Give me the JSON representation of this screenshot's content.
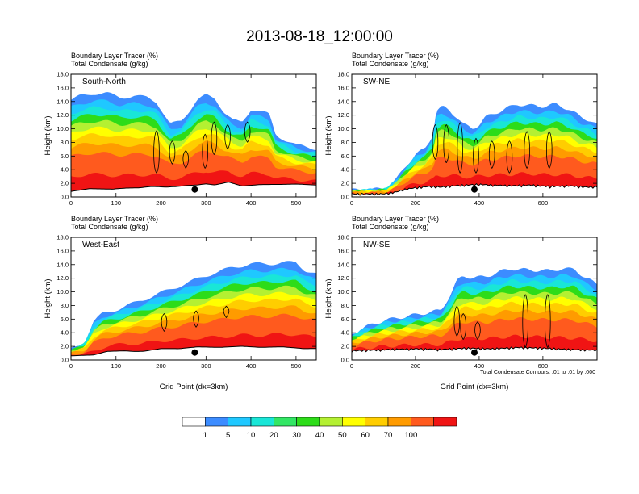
{
  "title": "2013-08-18_12:00:00",
  "chart_data": [
    {
      "type": "filled-contour",
      "panel": "South-North",
      "line1": "Boundary Layer Tracer   (%)",
      "line2": "Total Condensate   (g/kg)",
      "xlabel": "",
      "ylabel": "Height (km)",
      "xlim": [
        0,
        545
      ],
      "ylim": [
        0,
        18
      ],
      "xticks": [
        "0",
        "100",
        "200",
        "300",
        "400",
        "500"
      ],
      "yticks": [
        "0.0",
        "2.0",
        "4.0",
        "6.0",
        "8.0",
        "10.0",
        "12.0",
        "14.0",
        "16.0",
        "18.0"
      ],
      "marker": {
        "x": 275,
        "y": 1.1
      },
      "terrain": [
        [
          0,
          0.8
        ],
        [
          40,
          1.1
        ],
        [
          90,
          0.9
        ],
        [
          120,
          1.0
        ],
        [
          150,
          1.0
        ],
        [
          180,
          1.2
        ],
        [
          210,
          1.1
        ],
        [
          235,
          1.2
        ],
        [
          260,
          1.4
        ],
        [
          280,
          1.5
        ],
        [
          300,
          1.7
        ],
        [
          320,
          1.6
        ],
        [
          350,
          2.1
        ],
        [
          380,
          1.6
        ],
        [
          420,
          1.7
        ],
        [
          470,
          1.6
        ],
        [
          500,
          1.6
        ],
        [
          545,
          1.4
        ]
      ],
      "cloud_top": [
        [
          0,
          14.2
        ],
        [
          20,
          14.8
        ],
        [
          50,
          15.2
        ],
        [
          80,
          15.2
        ],
        [
          110,
          14.6
        ],
        [
          140,
          14.8
        ],
        [
          170,
          14.6
        ],
        [
          190,
          14.0
        ],
        [
          205,
          12.3
        ],
        [
          220,
          10.6
        ],
        [
          245,
          11.2
        ],
        [
          262,
          12.6
        ],
        [
          280,
          14.2
        ],
        [
          300,
          14.9
        ],
        [
          320,
          14.5
        ],
        [
          340,
          12.5
        ],
        [
          360,
          11.2
        ],
        [
          380,
          10.9
        ],
        [
          400,
          12.9
        ],
        [
          420,
          12.6
        ],
        [
          440,
          12.1
        ],
        [
          455,
          9.1
        ],
        [
          470,
          8.6
        ],
        [
          500,
          7.6
        ],
        [
          545,
          7.1
        ]
      ],
      "contours": [
        {
          "x": 190,
          "yb": 3.5,
          "yt": 9.7
        },
        {
          "x": 225,
          "yb": 4.8,
          "yt": 8.2
        },
        {
          "x": 255,
          "yb": 4.2,
          "yt": 6.8
        },
        {
          "x": 298,
          "yb": 4.2,
          "yt": 9.2
        },
        {
          "x": 318,
          "yb": 6.2,
          "yt": 11.0
        },
        {
          "x": 348,
          "yb": 7.0,
          "yt": 10.6
        },
        {
          "x": 392,
          "yb": 8.0,
          "yt": 11.0
        }
      ]
    },
    {
      "type": "filled-contour",
      "panel": "SW-NE",
      "line1": "Boundary Layer Tracer   (%)",
      "line2": "Total Condensate   (g/kg)",
      "xlabel": "",
      "ylabel": "Height (km)",
      "xlim": [
        0,
        770
      ],
      "ylim": [
        0,
        18
      ],
      "xticks": [
        "0",
        "200",
        "400",
        "600"
      ],
      "yticks": [
        "0.0",
        "2.0",
        "4.0",
        "6.0",
        "8.0",
        "10.0",
        "12.0",
        "14.0",
        "16.0",
        "18.0"
      ],
      "marker": {
        "x": 385,
        "y": 1.1
      },
      "terrain": [
        [
          0,
          0.2
        ],
        [
          100,
          0.2
        ],
        [
          140,
          0.5
        ],
        [
          170,
          0.9
        ],
        [
          200,
          1.1
        ],
        [
          240,
          1.3
        ],
        [
          280,
          1.2
        ],
        [
          320,
          1.4
        ],
        [
          360,
          1.5
        ],
        [
          400,
          1.6
        ],
        [
          440,
          1.5
        ],
        [
          500,
          1.4
        ],
        [
          560,
          1.5
        ],
        [
          620,
          1.3
        ],
        [
          680,
          1.4
        ],
        [
          740,
          1.2
        ],
        [
          770,
          1.3
        ]
      ],
      "cloud_top": [
        [
          0,
          1.0
        ],
        [
          70,
          1.1
        ],
        [
          110,
          1.3
        ],
        [
          140,
          2.6
        ],
        [
          170,
          4.6
        ],
        [
          200,
          6.2
        ],
        [
          230,
          7.1
        ],
        [
          255,
          9.2
        ],
        [
          265,
          12.6
        ],
        [
          285,
          13.2
        ],
        [
          305,
          12.8
        ],
        [
          330,
          11.7
        ],
        [
          350,
          10.6
        ],
        [
          380,
          10.1
        ],
        [
          400,
          10.6
        ],
        [
          420,
          11.7
        ],
        [
          450,
          12.3
        ],
        [
          480,
          12.9
        ],
        [
          520,
          13.6
        ],
        [
          560,
          13.4
        ],
        [
          600,
          13.3
        ],
        [
          640,
          13.6
        ],
        [
          680,
          12.9
        ],
        [
          720,
          11.7
        ],
        [
          750,
          11.2
        ],
        [
          770,
          10.6
        ]
      ],
      "contours": [
        {
          "x": 262,
          "yb": 5.5,
          "yt": 10.6
        },
        {
          "x": 297,
          "yb": 5.0,
          "yt": 10.6
        },
        {
          "x": 340,
          "yb": 3.5,
          "yt": 10.9
        },
        {
          "x": 390,
          "yb": 3.5,
          "yt": 8.6
        },
        {
          "x": 440,
          "yb": 4.2,
          "yt": 8.2
        },
        {
          "x": 495,
          "yb": 3.5,
          "yt": 8.2
        },
        {
          "x": 550,
          "yb": 4.2,
          "yt": 9.6
        },
        {
          "x": 620,
          "yb": 4.2,
          "yt": 9.6
        }
      ]
    },
    {
      "type": "filled-contour",
      "panel": "West-East",
      "line1": "Boundary Layer Tracer   (%)",
      "line2": "Total Condensate   (g/kg)",
      "xlabel": "Grid Point (dx=3km)",
      "ylabel": "Height (km)",
      "xlim": [
        0,
        545
      ],
      "ylim": [
        0,
        18
      ],
      "xticks": [
        "0",
        "100",
        "200",
        "300",
        "400",
        "500"
      ],
      "yticks": [
        "0.0",
        "2.0",
        "4.0",
        "6.0",
        "8.0",
        "10.0",
        "12.0",
        "14.0",
        "16.0",
        "18.0"
      ],
      "marker": {
        "x": 275,
        "y": 1.1
      },
      "terrain": [
        [
          0,
          0.3
        ],
        [
          50,
          0.5
        ],
        [
          80,
          1.1
        ],
        [
          120,
          1.3
        ],
        [
          160,
          1.2
        ],
        [
          200,
          1.5
        ],
        [
          240,
          1.4
        ],
        [
          280,
          1.6
        ],
        [
          330,
          1.5
        ],
        [
          380,
          1.7
        ],
        [
          420,
          1.6
        ],
        [
          470,
          1.8
        ],
        [
          545,
          1.6
        ]
      ],
      "cloud_top": [
        [
          0,
          1.6
        ],
        [
          30,
          2.6
        ],
        [
          50,
          5.6
        ],
        [
          70,
          6.8
        ],
        [
          110,
          7.6
        ],
        [
          150,
          8.6
        ],
        [
          190,
          9.6
        ],
        [
          230,
          10.6
        ],
        [
          270,
          11.6
        ],
        [
          310,
          12.6
        ],
        [
          340,
          13.2
        ],
        [
          360,
          13.6
        ],
        [
          400,
          14.1
        ],
        [
          440,
          14.1
        ],
        [
          470,
          14.3
        ],
        [
          500,
          14.3
        ],
        [
          520,
          13.2
        ],
        [
          545,
          12.6
        ]
      ],
      "contours": [
        {
          "x": 207,
          "yb": 4.2,
          "yt": 6.8
        },
        {
          "x": 278,
          "yb": 4.8,
          "yt": 7.2
        },
        {
          "x": 345,
          "yb": 6.2,
          "yt": 7.9
        }
      ]
    },
    {
      "type": "filled-contour",
      "panel": "NW-SE",
      "line1": "Boundary Layer Tracer   (%)",
      "line2": "Total Condensate   (g/kg)",
      "xlabel": "Grid Point (dx=3km)",
      "ylabel": "Height (km)",
      "xlim": [
        0,
        770
      ],
      "ylim": [
        0,
        18
      ],
      "xticks": [
        "0",
        "200",
        "400",
        "600"
      ],
      "yticks": [
        "0.0",
        "2.0",
        "4.0",
        "6.0",
        "8.0",
        "10.0",
        "12.0",
        "14.0",
        "16.0",
        "18.0"
      ],
      "marker": {
        "x": 385,
        "y": 1.1
      },
      "terrain": [
        [
          0,
          1.1
        ],
        [
          60,
          1.2
        ],
        [
          120,
          1.3
        ],
        [
          200,
          1.4
        ],
        [
          280,
          1.3
        ],
        [
          360,
          1.5
        ],
        [
          440,
          1.4
        ],
        [
          520,
          1.6
        ],
        [
          600,
          1.5
        ],
        [
          680,
          1.3
        ],
        [
          770,
          1.2
        ]
      ],
      "cloud_top": [
        [
          0,
          3.8
        ],
        [
          40,
          4.8
        ],
        [
          100,
          5.8
        ],
        [
          160,
          6.3
        ],
        [
          220,
          6.8
        ],
        [
          280,
          7.3
        ],
        [
          310,
          9.6
        ],
        [
          330,
          11.6
        ],
        [
          350,
          12.3
        ],
        [
          380,
          12.1
        ],
        [
          420,
          12.2
        ],
        [
          460,
          12.9
        ],
        [
          500,
          13.4
        ],
        [
          560,
          13.2
        ],
        [
          620,
          13.1
        ],
        [
          660,
          13.4
        ],
        [
          700,
          13.3
        ],
        [
          730,
          12.2
        ],
        [
          770,
          11.1
        ]
      ],
      "contours": [
        {
          "x": 330,
          "yb": 3.5,
          "yt": 7.9
        },
        {
          "x": 350,
          "yb": 3.0,
          "yt": 6.8
        },
        {
          "x": 395,
          "yb": 3.0,
          "yt": 5.6
        },
        {
          "x": 545,
          "yb": 1.8,
          "yt": 9.6
        },
        {
          "x": 615,
          "yb": 1.8,
          "yt": 9.6
        }
      ]
    }
  ],
  "footnote": "Total Condensate Contours: .01 to .01 by .000",
  "colorbar": {
    "labels": [
      "1",
      "5",
      "10",
      "20",
      "30",
      "40",
      "50",
      "60",
      "70",
      "100"
    ],
    "colors": [
      "#ffffff",
      "#3c8cff",
      "#1fc8ff",
      "#19e6d7",
      "#32e664",
      "#2ddc19",
      "#b4f032",
      "#ffff00",
      "#ffcd00",
      "#ff9b00",
      "#ff5a1e",
      "#f01414"
    ]
  }
}
